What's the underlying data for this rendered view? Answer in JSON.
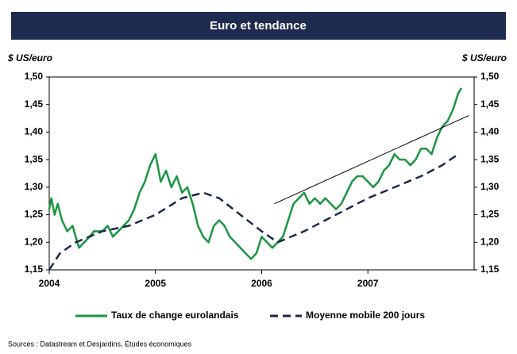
{
  "chart_data": {
    "type": "line",
    "title": "Euro et tendance",
    "ylabel": "$ US/euro",
    "y2label": "$ US/euro",
    "source": "Sources : Datastream et Desjardins, Études économiques",
    "xlim": [
      2004,
      2008
    ],
    "xticks": [
      2004,
      2005,
      2006,
      2007
    ],
    "ylim": [
      1.15,
      1.5
    ],
    "yticks": [
      {
        "value": 1.15,
        "label": "1,15"
      },
      {
        "value": 1.2,
        "label": "1,20"
      },
      {
        "value": 1.25,
        "label": "1,25"
      },
      {
        "value": 1.3,
        "label": "1,30"
      },
      {
        "value": 1.35,
        "label": "1,35"
      },
      {
        "value": 1.4,
        "label": "1,40"
      },
      {
        "value": 1.45,
        "label": "1,45"
      },
      {
        "value": 1.5,
        "label": "1,50"
      }
    ],
    "y2lim": [
      1.15,
      1.5
    ],
    "y2ticks": [
      {
        "value": 1.15,
        "label": "1,15"
      },
      {
        "value": 1.2,
        "label": "1,20"
      },
      {
        "value": 1.25,
        "label": "1,25"
      },
      {
        "value": 1.3,
        "label": "1,30"
      },
      {
        "value": 1.35,
        "label": "1,35"
      },
      {
        "value": 1.4,
        "label": "1,40"
      },
      {
        "value": 1.45,
        "label": "1,45"
      },
      {
        "value": 1.5,
        "label": "1,50"
      }
    ],
    "grid": false,
    "series": [
      {
        "name": "Taux de change eurolandais",
        "color": "#1a9641",
        "dash": false,
        "x": [
          2004.0,
          2004.02,
          2004.05,
          2004.08,
          2004.12,
          2004.17,
          2004.22,
          2004.28,
          2004.33,
          2004.38,
          2004.42,
          2004.5,
          2004.55,
          2004.6,
          2004.65,
          2004.7,
          2004.75,
          2004.8,
          2004.85,
          2004.9,
          2004.95,
          2005.0,
          2005.05,
          2005.1,
          2005.15,
          2005.2,
          2005.25,
          2005.3,
          2005.35,
          2005.4,
          2005.45,
          2005.5,
          2005.55,
          2005.6,
          2005.65,
          2005.7,
          2005.75,
          2005.8,
          2005.85,
          2005.9,
          2005.95,
          2006.0,
          2006.05,
          2006.1,
          2006.15,
          2006.2,
          2006.25,
          2006.3,
          2006.35,
          2006.4,
          2006.45,
          2006.5,
          2006.55,
          2006.6,
          2006.65,
          2006.7,
          2006.75,
          2006.8,
          2006.85,
          2006.9,
          2006.95,
          2007.0,
          2007.05,
          2007.1,
          2007.15,
          2007.2,
          2007.25,
          2007.3,
          2007.35,
          2007.4,
          2007.45,
          2007.5,
          2007.55,
          2007.6,
          2007.65,
          2007.7,
          2007.75,
          2007.8,
          2007.85,
          2007.88
        ],
        "values": [
          1.26,
          1.28,
          1.25,
          1.27,
          1.24,
          1.22,
          1.23,
          1.19,
          1.2,
          1.21,
          1.22,
          1.22,
          1.23,
          1.21,
          1.22,
          1.23,
          1.24,
          1.26,
          1.29,
          1.31,
          1.34,
          1.36,
          1.31,
          1.33,
          1.3,
          1.32,
          1.29,
          1.3,
          1.27,
          1.23,
          1.21,
          1.2,
          1.23,
          1.24,
          1.23,
          1.21,
          1.2,
          1.19,
          1.18,
          1.17,
          1.18,
          1.21,
          1.2,
          1.19,
          1.2,
          1.21,
          1.24,
          1.27,
          1.28,
          1.29,
          1.27,
          1.28,
          1.27,
          1.28,
          1.27,
          1.26,
          1.27,
          1.29,
          1.31,
          1.32,
          1.32,
          1.31,
          1.3,
          1.31,
          1.33,
          1.34,
          1.36,
          1.35,
          1.35,
          1.34,
          1.35,
          1.37,
          1.37,
          1.36,
          1.39,
          1.41,
          1.42,
          1.44,
          1.47,
          1.48
        ]
      },
      {
        "name": "Moyenne mobile 200 jours",
        "color": "#1b2a4a",
        "dash": true,
        "x": [
          2004.0,
          2004.1,
          2004.25,
          2004.5,
          2004.75,
          2005.0,
          2005.25,
          2005.45,
          2005.6,
          2005.8,
          2006.0,
          2006.15,
          2006.4,
          2006.6,
          2006.8,
          2007.0,
          2007.25,
          2007.5,
          2007.7,
          2007.85
        ],
        "values": [
          1.15,
          1.18,
          1.2,
          1.22,
          1.23,
          1.25,
          1.28,
          1.29,
          1.28,
          1.25,
          1.22,
          1.2,
          1.22,
          1.24,
          1.26,
          1.28,
          1.3,
          1.32,
          1.34,
          1.36
        ]
      }
    ],
    "trend": {
      "color": "#000000",
      "x": [
        2006.12,
        2007.95
      ],
      "values": [
        1.27,
        1.43
      ]
    }
  }
}
